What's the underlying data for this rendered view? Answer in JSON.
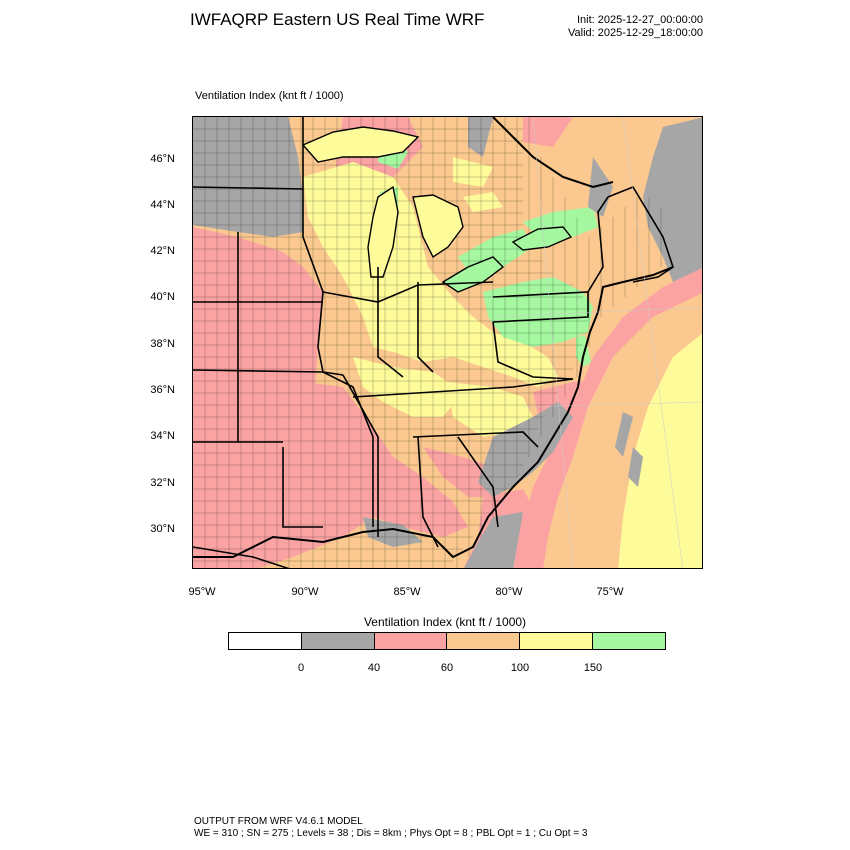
{
  "header": {
    "title": "IWFAQRP Eastern US Real Time WRF",
    "init": "Init: 2025-12-27_00:00:00",
    "valid": "Valid: 2025-12-29_18:00:00"
  },
  "plot": {
    "label": "Ventilation Index   (knt ft / 1000)",
    "lat_labels": [
      "46°N",
      "44°N",
      "42°N",
      "40°N",
      "38°N",
      "36°N",
      "34°N",
      "32°N",
      "30°N"
    ],
    "lon_labels": [
      "95°W",
      "90°W",
      "85°W",
      "80°W",
      "75°W"
    ]
  },
  "legend": {
    "title": "Ventilation Index  (knt ft / 1000)",
    "ticks": [
      "0",
      "40",
      "60",
      "100",
      "150"
    ],
    "colors": [
      "#ffffff",
      "#a6a6a6",
      "#fba3a3",
      "#fbc98f",
      "#fefb9a",
      "#a5f7a0"
    ]
  },
  "footer": {
    "line1": "OUTPUT FROM WRF V4.6.1 MODEL",
    "line2": "WE = 310 ; SN = 275 ; Levels = 38 ; Dis = 8km ; Phys Opt = 8 ; PBL Opt = 1 ; Cu Opt = 3"
  }
}
